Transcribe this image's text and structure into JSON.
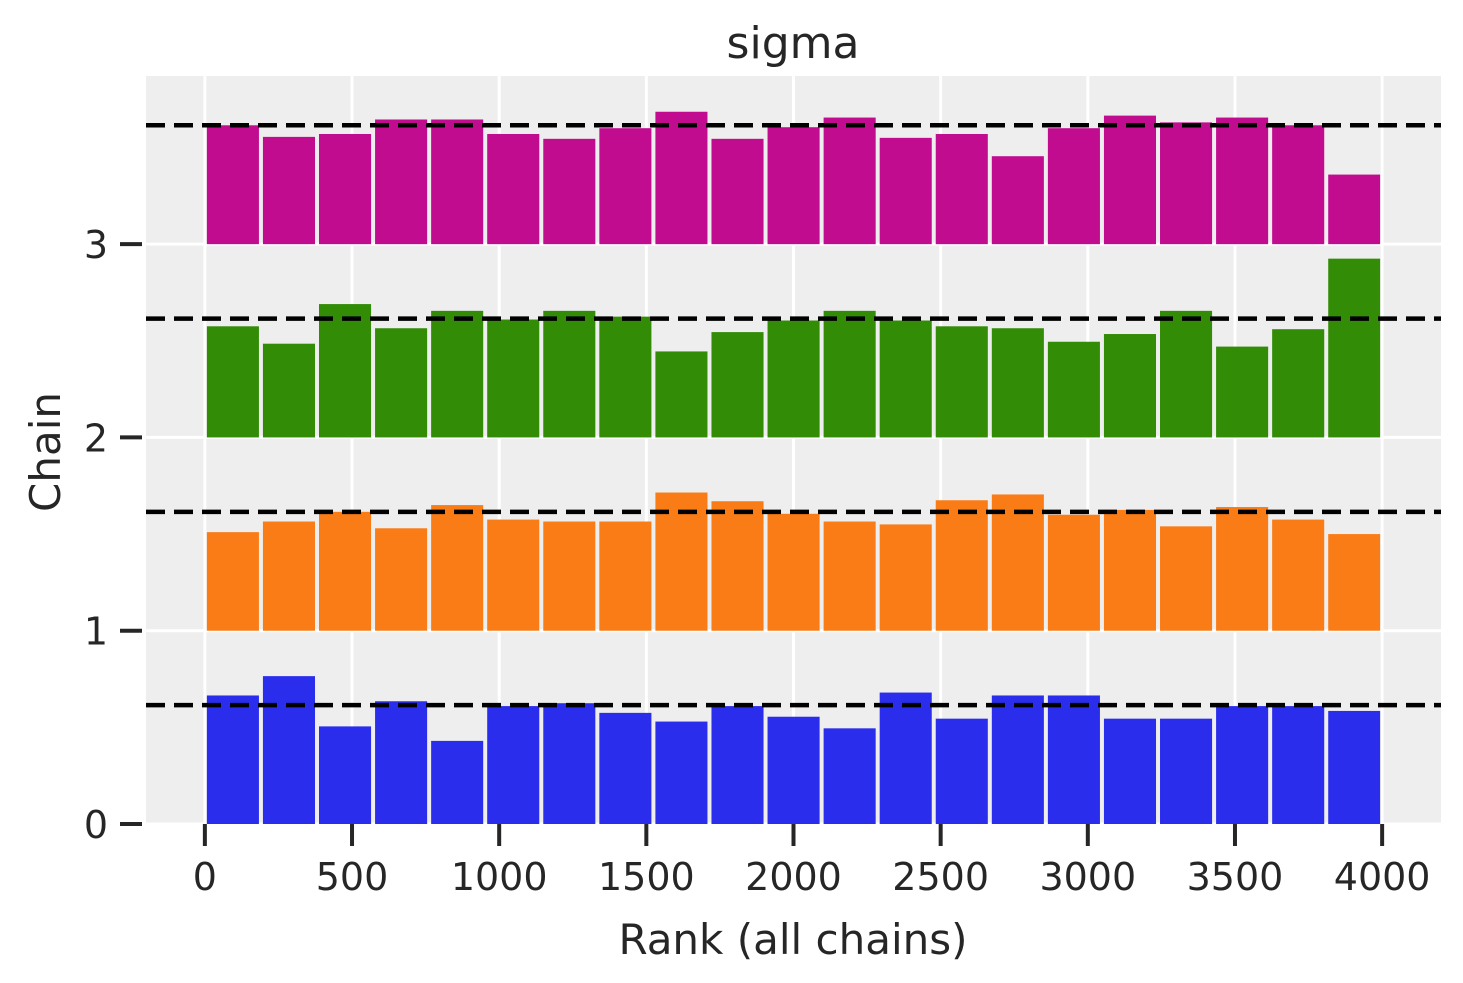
{
  "chart_data": {
    "type": "bar",
    "title": "sigma",
    "xlabel": "Rank (all chains)",
    "ylabel": "Chain",
    "xlim": [
      -200,
      4200
    ],
    "ylim": [
      0,
      3.87
    ],
    "x_ticks": [
      0,
      500,
      1000,
      1500,
      2000,
      2500,
      3000,
      3500,
      4000
    ],
    "y_ticks": [
      0,
      1,
      2,
      3
    ],
    "grid": true,
    "bin_edges": [
      0,
      190.5,
      381,
      571.5,
      762,
      952.5,
      1143,
      1333.5,
      1524,
      1714.5,
      1905,
      2095.5,
      2286,
      2476.5,
      2667,
      2857.5,
      3048,
      3238.5,
      3429,
      3619.5,
      3810,
      4000
    ],
    "series": [
      {
        "chain": 0,
        "color": "#2a2eec",
        "reference": 0.615,
        "values": [
          0.665,
          0.765,
          0.505,
          0.635,
          0.43,
          0.61,
          0.625,
          0.575,
          0.53,
          0.61,
          0.555,
          0.495,
          0.68,
          0.545,
          0.665,
          0.665,
          0.545,
          0.545,
          0.61,
          0.61,
          0.585
        ]
      },
      {
        "chain": 1,
        "color": "#fa7c17",
        "reference": 0.615,
        "values": [
          0.51,
          0.565,
          0.615,
          0.53,
          0.65,
          0.575,
          0.565,
          0.565,
          0.715,
          0.67,
          0.605,
          0.565,
          0.55,
          0.675,
          0.705,
          0.6,
          0.625,
          0.54,
          0.64,
          0.575,
          0.5
        ]
      },
      {
        "chain": 2,
        "color": "#328c06",
        "reference": 0.615,
        "values": [
          0.575,
          0.485,
          0.69,
          0.565,
          0.655,
          0.61,
          0.655,
          0.625,
          0.445,
          0.545,
          0.605,
          0.655,
          0.605,
          0.575,
          0.565,
          0.495,
          0.535,
          0.655,
          0.47,
          0.56,
          0.925
        ]
      },
      {
        "chain": 3,
        "color": "#c10c90",
        "reference": 0.615,
        "values": [
          0.615,
          0.555,
          0.57,
          0.645,
          0.645,
          0.57,
          0.545,
          0.6,
          0.685,
          0.545,
          0.605,
          0.655,
          0.55,
          0.57,
          0.455,
          0.6,
          0.665,
          0.63,
          0.655,
          0.615,
          0.36
        ]
      }
    ]
  }
}
